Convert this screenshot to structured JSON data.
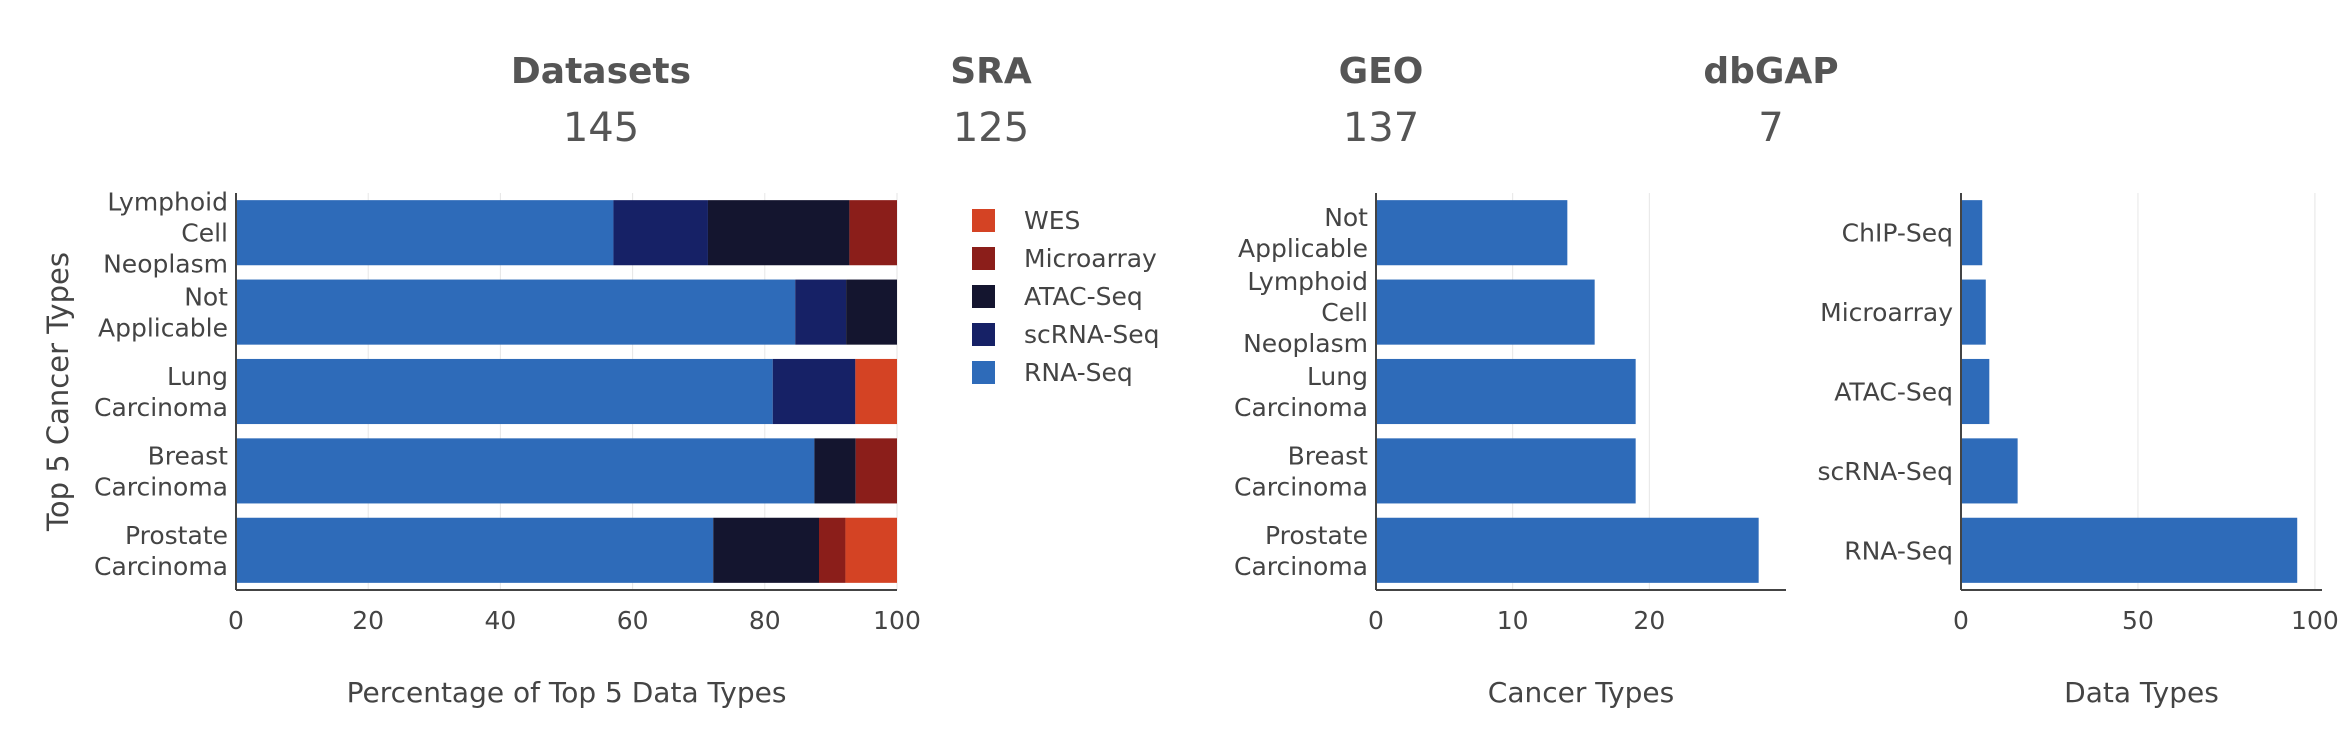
{
  "stats": [
    {
      "label": "Datasets",
      "value": "145"
    },
    {
      "label": "SRA",
      "value": "125"
    },
    {
      "label": "GEO",
      "value": "137"
    },
    {
      "label": "dbGAP",
      "value": "7"
    }
  ],
  "colors": {
    "WES": "#d44324",
    "Microarray": "#8b1e1a",
    "ATAC-Seq": "#14152f",
    "scRNA-Seq": "#162166",
    "RNA-Seq": "#2e6bb9"
  },
  "chart_data": [
    {
      "type": "bar",
      "orientation": "horizontal",
      "stacked": true,
      "xlabel": "Percentage of Top 5 Data Types",
      "ylabel": "Top 5 Cancer Types",
      "xlim": [
        0,
        100
      ],
      "xticks": [
        0,
        20,
        40,
        60,
        80,
        100
      ],
      "legend_position": "right",
      "categories": [
        [
          "Lymphoid",
          "Cell",
          "Neoplasm"
        ],
        [
          "Not",
          "Applicable"
        ],
        [
          "Lung",
          "Carcinoma"
        ],
        [
          "Breast",
          "Carcinoma"
        ],
        [
          "Prostate",
          "Carcinoma"
        ]
      ],
      "series": [
        {
          "name": "RNA-Seq",
          "values": [
            57.1,
            84.6,
            81.2,
            87.5,
            72.2
          ]
        },
        {
          "name": "scRNA-Seq",
          "values": [
            14.3,
            7.7,
            12.5,
            0,
            0
          ]
        },
        {
          "name": "ATAC-Seq",
          "values": [
            21.4,
            7.7,
            0,
            6.25,
            16.0
          ]
        },
        {
          "name": "Microarray",
          "values": [
            7.2,
            0,
            0,
            6.25,
            4.0
          ]
        },
        {
          "name": "WES",
          "values": [
            0,
            0,
            6.3,
            0,
            7.8
          ]
        }
      ],
      "legend_order": [
        "WES",
        "Microarray",
        "ATAC-Seq",
        "scRNA-Seq",
        "RNA-Seq"
      ]
    },
    {
      "type": "bar",
      "orientation": "horizontal",
      "xlabel": "Cancer Types",
      "xlim": [
        0,
        30
      ],
      "xticks": [
        0,
        10,
        20
      ],
      "categories": [
        [
          "Not",
          "Applicable"
        ],
        [
          "Lymphoid",
          "Cell",
          "Neoplasm"
        ],
        [
          "Lung",
          "Carcinoma"
        ],
        [
          "Breast",
          "Carcinoma"
        ],
        [
          "Prostate",
          "Carcinoma"
        ]
      ],
      "values": [
        14,
        16,
        19,
        19,
        28
      ]
    },
    {
      "type": "bar",
      "orientation": "horizontal",
      "xlabel": "Data Types",
      "xlim": [
        0,
        102
      ],
      "xticks": [
        0,
        50,
        100
      ],
      "categories": [
        [
          "ChIP-Seq"
        ],
        [
          "Microarray"
        ],
        [
          "ATAC-Seq"
        ],
        [
          "scRNA-Seq"
        ],
        [
          "RNA-Seq"
        ]
      ],
      "values": [
        6,
        7,
        8,
        16,
        95
      ]
    }
  ]
}
